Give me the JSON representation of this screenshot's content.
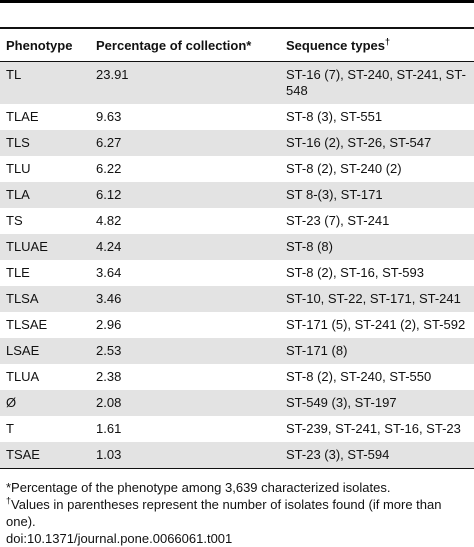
{
  "table": {
    "columns": [
      "Phenotype",
      "Percentage of collection*",
      "Sequence types"
    ],
    "column_sup": "†",
    "rows": [
      [
        "TL",
        "23.91",
        "ST-16 (7), ST-240, ST-241, ST-548"
      ],
      [
        "TLAE",
        "9.63",
        "ST-8 (3), ST-551"
      ],
      [
        "TLS",
        "6.27",
        "ST-16 (2), ST-26, ST-547"
      ],
      [
        "TLU",
        "6.22",
        "ST-8 (2), ST-240 (2)"
      ],
      [
        "TLA",
        "6.12",
        "ST 8-(3), ST-171"
      ],
      [
        "TS",
        "4.82",
        "ST-23 (7), ST-241"
      ],
      [
        "TLUAE",
        "4.24",
        "ST-8 (8)"
      ],
      [
        "TLE",
        "3.64",
        "ST-8 (2), ST-16, ST-593"
      ],
      [
        "TLSA",
        "3.46",
        "ST-10, ST-22, ST-171, ST-241"
      ],
      [
        "TLSAE",
        "2.96",
        "ST-171 (5), ST-241 (2), ST-592"
      ],
      [
        "LSAE",
        "2.53",
        "ST-171 (8)"
      ],
      [
        "TLUA",
        "2.38",
        "ST-8 (2), ST-240, ST-550"
      ],
      [
        "Ø",
        "2.08",
        "ST-549 (3), ST-197"
      ],
      [
        "T",
        "1.61",
        "ST-239, ST-241, ST-16, ST-23"
      ],
      [
        "TSAE",
        "1.03",
        "ST-23 (3), ST-594"
      ]
    ]
  },
  "footnotes": {
    "note1": "*Percentage of the phenotype among 3,639 characterized isolates.",
    "note2_sup": "†",
    "note2": "Values in parentheses represent the number of isolates found (if more than one).",
    "doi": "doi:10.1371/journal.pone.0066061.t001"
  }
}
